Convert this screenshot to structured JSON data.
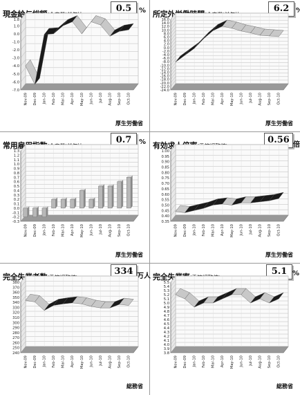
{
  "months": [
    "Nov-09",
    "Dec-09",
    "Jan-10",
    "Feb-10",
    "Mar-10",
    "Apr-10",
    "May-10",
    "Jun-10",
    "Jul-10",
    "Aug-10",
    "Sep-10",
    "Oct-10"
  ],
  "chart_data": [
    {
      "id": "p0",
      "type": "line",
      "title": "現金給与総額",
      "subtitle": "(全産業)",
      "suffix": "前年比",
      "latest": "0.5",
      "unit": "%",
      "source": "厚生労働省",
      "yticks": [
        "1.8",
        "1.0",
        "0.0",
        "-1.0",
        "-2.0",
        "-3.0",
        "-4.0",
        "-5.0",
        "-6.0",
        "-7.0"
      ],
      "values": [
        -4.0,
        -6.3,
        -0.1,
        0.0,
        1.0,
        1.5,
        0.0,
        1.5,
        1.1,
        -0.3,
        0.3,
        0.5
      ],
      "ylim": [
        -7,
        1.8
      ],
      "style": "ribbon"
    },
    {
      "id": "p1",
      "type": "line",
      "title": "所定外労働時間",
      "subtitle": "(全産業)",
      "suffix": "前年比",
      "latest": "6.2",
      "unit": "%",
      "source": "厚生労働省",
      "yticks": [
        "16.0",
        "14.0",
        "12.0",
        "10.0",
        "8.0",
        "6.0",
        "4.0",
        "2.0",
        "0.0",
        "-2.0",
        "-4.0",
        "-6.0",
        "-8.0",
        "-10.0",
        "-12.0",
        "-14.0",
        "-16.0",
        "-18.0",
        "-20.0",
        "-22.0",
        "-24.0"
      ],
      "values": [
        -8.3,
        -4.4,
        -0.5,
        5.0,
        9.6,
        12.1,
        11.0,
        9.4,
        8.3,
        7.0,
        6.6,
        6.2
      ],
      "ylim": [
        -24,
        16
      ],
      "style": "ribbon"
    },
    {
      "id": "p2",
      "type": "bar",
      "title": "常用雇用指数",
      "subtitle": "(全産業)",
      "suffix": "前年比",
      "latest": "0.7",
      "unit": "%",
      "source": "厚生労働省",
      "yticks": [
        "1.3",
        "1.2",
        "1.1",
        "1.0",
        "0.9",
        "0.8",
        "0.7",
        "0.6",
        "0.5",
        "0.4",
        "0.3",
        "0.2",
        "0.1",
        "0.0",
        "-0.1",
        "-0.2",
        "-0.3"
      ],
      "values": [
        -0.2,
        -0.2,
        -0.2,
        0.2,
        0.2,
        0.2,
        0.4,
        0.2,
        0.5,
        0.5,
        0.6,
        0.7
      ],
      "ylim": [
        -0.3,
        1.3
      ],
      "style": "bar"
    },
    {
      "id": "p3",
      "type": "line",
      "title": "有効求人倍率",
      "subtitle": "(季節調整値)",
      "suffix": "",
      "latest": "0.56",
      "unit": "倍",
      "source": "厚生労働省",
      "yticks": [
        "1.00",
        "0.95",
        "0.90",
        "0.85",
        "0.80",
        "0.75",
        "0.70",
        "0.65",
        "0.60",
        "0.55",
        "0.50",
        "0.45",
        "0.40",
        "0.35"
      ],
      "values": [
        0.44,
        0.43,
        0.45,
        0.47,
        0.5,
        0.51,
        0.5,
        0.52,
        0.52,
        0.53,
        0.54,
        0.56
      ],
      "ylim": [
        0.35,
        1.0
      ],
      "style": "ribbon"
    },
    {
      "id": "p4",
      "type": "line",
      "title": "完全失業者数",
      "subtitle": "(季節調整値)",
      "suffix": "",
      "latest": "334",
      "unit": "万人",
      "source": "総務省",
      "yticks": [
        "380",
        "370",
        "360",
        "350",
        "340",
        "330",
        "320",
        "310",
        "300",
        "290",
        "280",
        "270",
        "260",
        "250",
        "240"
      ],
      "values": [
        344,
        341,
        324,
        334,
        337,
        339,
        337,
        332,
        329,
        329,
        336,
        334
      ],
      "ylim": [
        240,
        380
      ],
      "style": "ribbon"
    },
    {
      "id": "p5",
      "type": "line",
      "title": "完全失業率",
      "subtitle": "(季節調整値)",
      "suffix": "",
      "latest": "5.1",
      "unit": "%",
      "source": "総務省",
      "yticks": [
        "5.5",
        "5.4",
        "5.3",
        "5.2",
        "5.1",
        "5.0",
        "4.9",
        "4.8",
        "4.7",
        "4.6",
        "4.5",
        "4.4",
        "4.3",
        "4.2",
        "4.1",
        "4.0",
        "3.9",
        "3.8"
      ],
      "values": [
        5.2,
        5.1,
        4.9,
        5.0,
        5.0,
        5.1,
        5.2,
        5.2,
        5.0,
        5.1,
        5.0,
        5.1
      ],
      "ylim": [
        3.8,
        5.5
      ],
      "style": "ribbon"
    }
  ]
}
